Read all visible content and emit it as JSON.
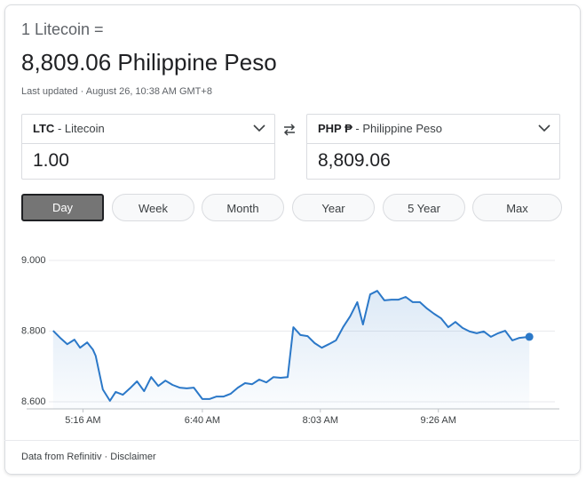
{
  "header": {
    "subtitle": "1 Litecoin =",
    "title": "8,809.06 Philippine Peso",
    "last_updated": "Last updated · August 26, 10:38 AM GMT+8"
  },
  "converter": {
    "from": {
      "code": "LTC",
      "name": "- Litecoin",
      "amount": "1.00"
    },
    "to": {
      "code": "PHP ₱",
      "name": "- Philippine Peso",
      "amount": "8,809.06"
    }
  },
  "ranges": {
    "options": [
      "Day",
      "Week",
      "Month",
      "Year",
      "5 Year",
      "Max"
    ],
    "selected": 0
  },
  "chart_data": {
    "type": "line",
    "color": "#2b78c8",
    "grid": true,
    "x": [
      295,
      300,
      305,
      310,
      314,
      319,
      323,
      325,
      330,
      335,
      339,
      344,
      349,
      354,
      359,
      364,
      369,
      374,
      379,
      384,
      389,
      394,
      400,
      405,
      410,
      415,
      420,
      425,
      430,
      435,
      440,
      445,
      450,
      455,
      460,
      464,
      469,
      474,
      479,
      484,
      489,
      494,
      499,
      504,
      509,
      513,
      518,
      523,
      528,
      533,
      538,
      543,
      548,
      553,
      558,
      563,
      568,
      573,
      578,
      583,
      588,
      593,
      598,
      603,
      608,
      613,
      618,
      623,
      630
    ],
    "values": [
      8801,
      8781,
      8763,
      8776,
      8753,
      8768,
      8748,
      8730,
      8635,
      8603,
      8628,
      8620,
      8638,
      8658,
      8630,
      8670,
      8645,
      8660,
      8648,
      8640,
      8638,
      8640,
      8608,
      8608,
      8615,
      8615,
      8623,
      8640,
      8653,
      8650,
      8663,
      8655,
      8670,
      8668,
      8670,
      8811,
      8789,
      8786,
      8766,
      8753,
      8763,
      8774,
      8811,
      8842,
      8882,
      8819,
      8904,
      8914,
      8887,
      8889,
      8889,
      8897,
      8882,
      8882,
      8864,
      8849,
      8836,
      8811,
      8826,
      8809,
      8799,
      8794,
      8799,
      8784,
      8794,
      8801,
      8774,
      8781,
      8784
    ],
    "xlim": [
      292,
      648
    ],
    "xticks": [
      {
        "value": 316,
        "label": "5:16 AM"
      },
      {
        "value": 400,
        "label": "6:40 AM"
      },
      {
        "value": 483,
        "label": "8:03 AM"
      },
      {
        "value": 566,
        "label": "9:26 AM"
      }
    ],
    "ylim": [
      8580,
      9000
    ],
    "yticks": [
      {
        "value": 9000,
        "label": "9.000"
      },
      {
        "value": 8800,
        "label": "8.800"
      },
      {
        "value": 8600,
        "label": "8.600"
      }
    ]
  },
  "footer": {
    "source": "Data from Refinitiv ·",
    "link": "Disclaimer"
  }
}
